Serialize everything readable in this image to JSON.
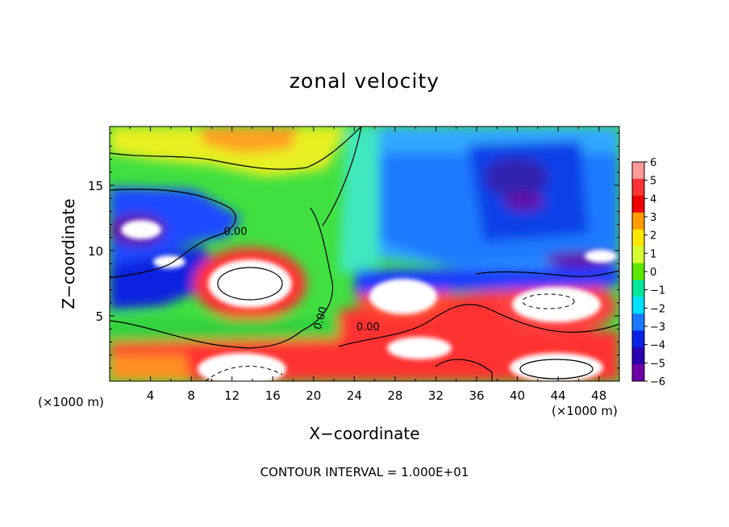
{
  "chart_data": {
    "type": "heatmap",
    "title": "zonal velocity",
    "xlabel": "X−coordinate",
    "ylabel": "Z−coordinate",
    "x_unit_label_left": "(×1000 m)",
    "x_unit_label_right": "(×1000 m)",
    "x_ticks": [
      "4",
      "8",
      "12",
      "16",
      "20",
      "24",
      "28",
      "32",
      "36",
      "40",
      "44",
      "48"
    ],
    "y_ticks": [
      "5",
      "10",
      "15"
    ],
    "xlim": [
      0,
      50
    ],
    "ylim": [
      0,
      19.5
    ],
    "colorbar": {
      "ticks": [
        "6",
        "5",
        "4",
        "3",
        "2",
        "1",
        "0",
        "−1",
        "−2",
        "−3",
        "−4",
        "−5",
        "−6"
      ],
      "range": [
        -6,
        6
      ],
      "colors": [
        "#ff9a9a",
        "#ff3434",
        "#f00000",
        "#ff9c00",
        "#ffe600",
        "#d6ff32",
        "#5ce600",
        "#00e89c",
        "#00e0ff",
        "#1a7aff",
        "#0a22e6",
        "#2a00b0",
        "#7000a8"
      ]
    },
    "contour_labels": [
      "0.00",
      "0.00",
      "0.00"
    ],
    "annotation": "CONTOUR INTERVAL = 1.000E+01",
    "regions_description_values": [
      {
        "x": 14,
        "z": 8.0,
        "value": 8
      },
      {
        "x": 30,
        "z": 6.5,
        "value": 8
      },
      {
        "x": 43,
        "z": 6.3,
        "value": 8
      },
      {
        "x": 14,
        "z": 1.2,
        "value": 8
      },
      {
        "x": 43,
        "z": 1.2,
        "value": 8
      },
      {
        "x": 3,
        "z": 11.8,
        "value": -8
      },
      {
        "x": 47,
        "z": 9.6,
        "value": -8
      }
    ]
  }
}
